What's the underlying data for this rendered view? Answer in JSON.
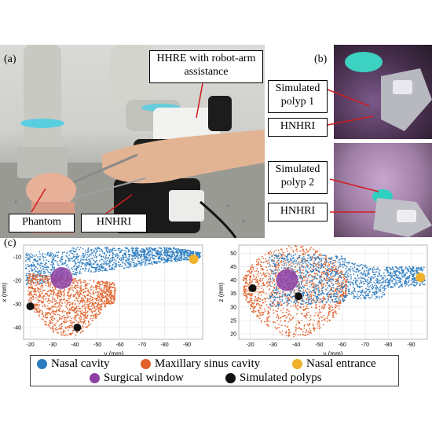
{
  "panels": {
    "a": "(a)",
    "b": "(b)",
    "c": "(c)"
  },
  "callouts": {
    "hhre": "HHRE with robot-arm assistance",
    "phantom": "Phantom",
    "hnhri_a": "HNHRI",
    "polyp1": "Simulated polyp 1",
    "hnhri_b1": "HNHRI",
    "polyp2": "Simulated polyp 2",
    "hnhri_b2": "HNHRI"
  },
  "colors": {
    "nasal_cavity": "#2b7bc0",
    "maxillary": "#e0612a",
    "nasal_entrance": "#f0b12b",
    "surgical_window": "#8e3fa3",
    "polyps": "#111111"
  },
  "chart_data": [
    {
      "type": "scatter",
      "xlabel": "y (mm)",
      "ylabel": "x (mm)",
      "xticks": [
        -20,
        -30,
        -40,
        -50,
        -60,
        -70,
        -80,
        -90
      ],
      "yticks": [
        -10,
        -20,
        -30,
        -40
      ],
      "xlim": [
        -17,
        -97
      ],
      "ylim": [
        -45,
        -5
      ],
      "series": [
        {
          "name": "Nasal cavity",
          "region": "upper band"
        },
        {
          "name": "Maxillary sinus cavity",
          "region": "lower lobe"
        },
        {
          "name": "Nasal entrance",
          "x": -93,
          "y": -11
        },
        {
          "name": "Surgical window",
          "x": -34,
          "y": -19
        },
        {
          "name": "Simulated polyps",
          "points": [
            {
              "x": -20,
              "y": -31
            },
            {
              "x": -41,
              "y": -40
            }
          ]
        }
      ]
    },
    {
      "type": "scatter",
      "xlabel": "y (mm)",
      "ylabel": "z (mm)",
      "xticks": [
        -20,
        -30,
        -40,
        -50,
        -60,
        -70,
        -80,
        -90
      ],
      "yticks": [
        20,
        25,
        30,
        35,
        40,
        45,
        50
      ],
      "xlim": [
        -15,
        -97
      ],
      "ylim": [
        18,
        53
      ],
      "series": [
        {
          "name": "Nasal cavity",
          "region": "elongated body"
        },
        {
          "name": "Maxillary sinus cavity",
          "region": "left lobe"
        },
        {
          "name": "Nasal entrance",
          "x": -94,
          "y": 41
        },
        {
          "name": "Surgical window",
          "x": -36,
          "y": 40
        },
        {
          "name": "Simulated polyps",
          "points": [
            {
              "x": -21,
              "y": 37
            },
            {
              "x": -41,
              "y": 34
            }
          ]
        }
      ]
    }
  ],
  "legend": {
    "nasal_cavity": "Nasal cavity",
    "maxillary": "Maxillary sinus cavity",
    "nasal_entrance": "Nasal entrance",
    "surgical_window": "Surgical window",
    "polyps": "Simulated polyps"
  }
}
